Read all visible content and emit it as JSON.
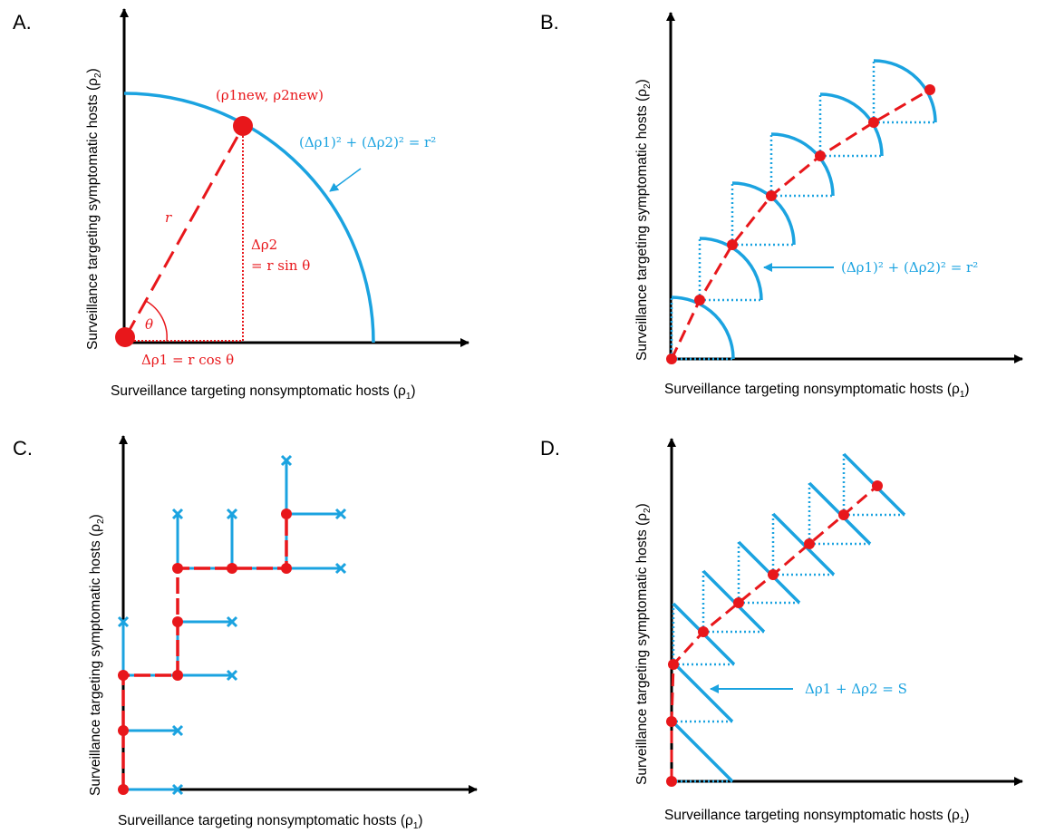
{
  "colors": {
    "axis": "#000000",
    "red": "#e8171b",
    "blue": "#1ba3e0"
  },
  "panels": {
    "a": {
      "letter": "A.",
      "ylabel": "Surveillance targeting symptomatic hosts (ρ",
      "ylabel_sub": "2",
      "xlabel": "Surveillance targeting nonsymptomatic hosts (ρ",
      "xlabel_sub": "1",
      "point_label": "(ρ1new, ρ2new)",
      "constraint_label": "(Δρ1)² + (Δρ2)² = r²",
      "r_label": "r",
      "theta_label": "θ",
      "dy_label_1": "Δρ2",
      "dy_label_2": "= r sin θ",
      "dx_label": "Δρ1 = r cos θ"
    },
    "b": {
      "letter": "B.",
      "ylabel": "Surveillance targeting symptomatic hosts (ρ",
      "ylabel_sub": "2",
      "xlabel": "Surveillance targeting nonsymptomatic hosts (ρ",
      "xlabel_sub": "1",
      "constraint_label": "(Δρ1)² + (Δρ2)² = r²"
    },
    "c": {
      "letter": "C.",
      "ylabel": "Surveillance targeting symptomatic hosts (ρ",
      "ylabel_sub": "2",
      "xlabel": "Surveillance targeting nonsymptomatic hosts (ρ",
      "xlabel_sub": "1"
    },
    "d": {
      "letter": "D.",
      "ylabel": "Surveillance targeting symptomatic hosts (ρ",
      "ylabel_sub": "2",
      "xlabel": "Surveillance targeting nonsymptomatic hosts (ρ",
      "xlabel_sub": "1",
      "constraint_label": "Δρ1 + Δρ2 = S"
    }
  }
}
